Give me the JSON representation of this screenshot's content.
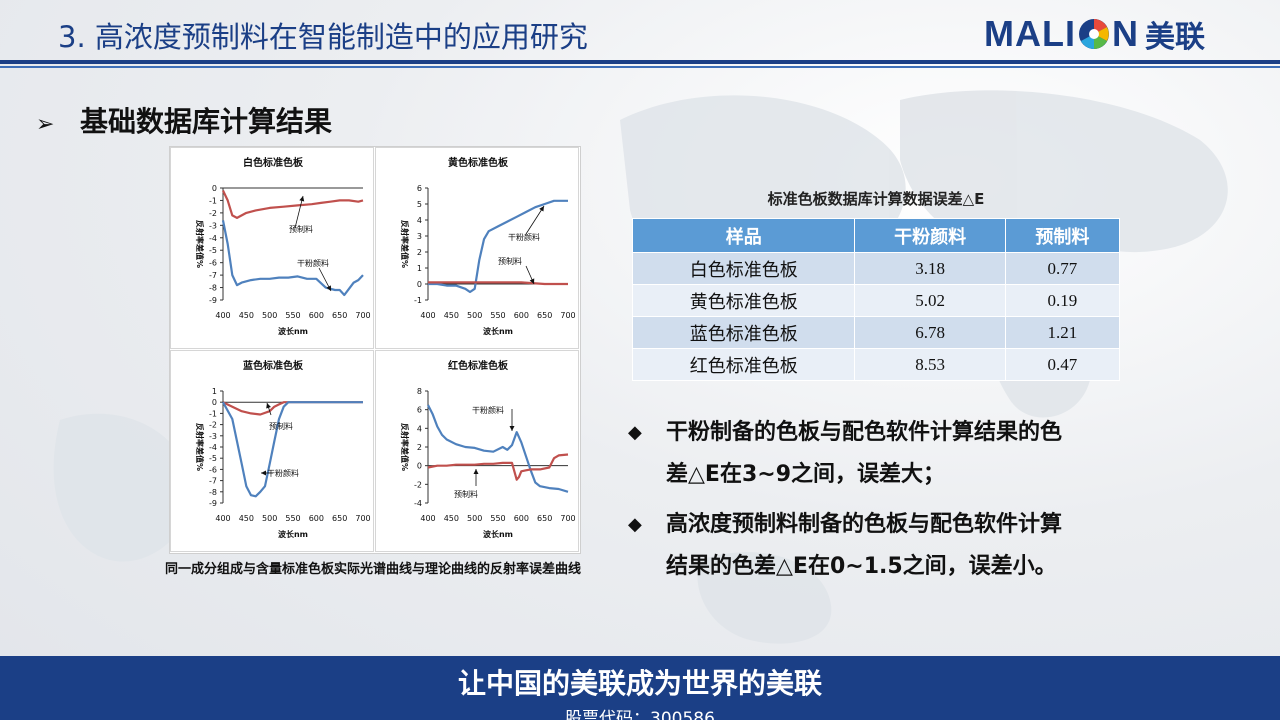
{
  "header": {
    "title": "3.  高浓度预制料在智能制造中的应用研究",
    "logo_text": "MALI N",
    "logo_cn": "美联"
  },
  "section": {
    "arrow": "➢",
    "title": "基础数据库计算结果"
  },
  "chart_data": [
    {
      "type": "line",
      "title": "白色标准色板",
      "xlabel": "波长nm",
      "ylabel": "反射率差值%",
      "xlim": [
        400,
        700
      ],
      "ylim": [
        -9,
        0
      ],
      "xticks": [
        "400",
        "450",
        "500",
        "550",
        "600",
        "650",
        "700"
      ],
      "yticks": [
        "0",
        "-1",
        "-2",
        "-3",
        "-4",
        "-5",
        "-6",
        "-7",
        "-8",
        "-9"
      ],
      "series": [
        {
          "name": "预制料",
          "color": "#c0504d",
          "x": [
            400,
            410,
            420,
            430,
            450,
            470,
            500,
            530,
            560,
            590,
            610,
            630,
            650,
            670,
            690,
            700
          ],
          "y": [
            -0.2,
            -1.0,
            -2.2,
            -2.4,
            -2.0,
            -1.8,
            -1.6,
            -1.5,
            -1.4,
            -1.3,
            -1.2,
            -1.1,
            -1.0,
            -1.0,
            -1.1,
            -1.0
          ]
        },
        {
          "name": "干粉颜料",
          "color": "#4f81bd",
          "x": [
            400,
            410,
            420,
            430,
            440,
            460,
            480,
            500,
            520,
            540,
            560,
            580,
            600,
            620,
            640,
            650,
            660,
            670,
            680,
            690,
            700
          ],
          "y": [
            -2.6,
            -4.5,
            -7.0,
            -7.8,
            -7.6,
            -7.4,
            -7.3,
            -7.3,
            -7.2,
            -7.2,
            -7.1,
            -7.3,
            -7.3,
            -8.0,
            -8.2,
            -8.2,
            -8.6,
            -8.1,
            -7.6,
            -7.4,
            -7.0
          ]
        }
      ],
      "annotations": [
        "预制料",
        "干粉颜料"
      ]
    },
    {
      "type": "line",
      "title": "黄色标准色板",
      "xlabel": "波长nm",
      "ylabel": "反射率差值%",
      "xlim": [
        400,
        700
      ],
      "ylim": [
        -1,
        6
      ],
      "xticks": [
        "400",
        "450",
        "500",
        "550",
        "600",
        "650",
        "700"
      ],
      "yticks": [
        "6",
        "5",
        "4",
        "3",
        "2",
        "1",
        "0",
        "-1"
      ],
      "series": [
        {
          "name": "干粉颜料",
          "color": "#4f81bd",
          "x": [
            400,
            420,
            440,
            460,
            480,
            490,
            500,
            505,
            510,
            520,
            530,
            550,
            570,
            590,
            610,
            630,
            650,
            670,
            690,
            700
          ],
          "y": [
            0.0,
            0.0,
            -0.1,
            -0.1,
            -0.3,
            -0.5,
            -0.3,
            0.6,
            1.5,
            2.8,
            3.3,
            3.6,
            3.9,
            4.2,
            4.5,
            4.8,
            5.0,
            5.2,
            5.2,
            5.2
          ]
        },
        {
          "name": "预制料",
          "color": "#c0504d",
          "x": [
            400,
            450,
            500,
            550,
            600,
            650,
            700
          ],
          "y": [
            0.1,
            0.1,
            0.1,
            0.1,
            0.1,
            0.0,
            0.0
          ]
        }
      ],
      "annotations": [
        "干粉颜料",
        "预制料"
      ]
    },
    {
      "type": "line",
      "title": "蓝色标准色板",
      "xlabel": "波长nm",
      "ylabel": "反射率差值%",
      "xlim": [
        400,
        700
      ],
      "ylim": [
        -9,
        1
      ],
      "xticks": [
        "400",
        "450",
        "500",
        "550",
        "600",
        "650",
        "700"
      ],
      "yticks": [
        "1",
        "0",
        "-1",
        "-2",
        "-3",
        "-4",
        "-5",
        "-6",
        "-7",
        "-8",
        "-9"
      ],
      "series": [
        {
          "name": "预制料",
          "color": "#c0504d",
          "x": [
            400,
            420,
            440,
            460,
            480,
            500,
            510,
            520,
            530,
            540,
            560,
            600,
            650,
            700
          ],
          "y": [
            0.0,
            -0.4,
            -0.8,
            -1.0,
            -1.1,
            -0.8,
            -0.4,
            -0.2,
            0.0,
            0.0,
            0.0,
            0.0,
            0.0,
            0.0
          ]
        },
        {
          "name": "干粉颜料",
          "color": "#4f81bd",
          "x": [
            400,
            420,
            430,
            440,
            450,
            460,
            470,
            480,
            490,
            500,
            510,
            520,
            530,
            540,
            560,
            600,
            650,
            700
          ],
          "y": [
            0.0,
            -1.5,
            -3.5,
            -5.5,
            -7.5,
            -8.3,
            -8.4,
            -8.0,
            -7.5,
            -5.5,
            -3.5,
            -1.5,
            -0.4,
            0.0,
            0.0,
            0.0,
            0.0,
            0.0
          ]
        }
      ],
      "annotations": [
        "预制料",
        "干粉颜料"
      ]
    },
    {
      "type": "line",
      "title": "红色标准色板",
      "xlabel": "波长nm",
      "ylabel": "反射率差值%",
      "xlim": [
        400,
        700
      ],
      "ylim": [
        -4,
        8
      ],
      "xticks": [
        "400",
        "450",
        "500",
        "550",
        "600",
        "650",
        "700"
      ],
      "yticks": [
        "8",
        "6",
        "4",
        "2",
        "0",
        "-2",
        "-4"
      ],
      "series": [
        {
          "name": "干粉颜料",
          "color": "#4f81bd",
          "x": [
            400,
            410,
            420,
            430,
            440,
            460,
            480,
            500,
            520,
            540,
            560,
            570,
            580,
            590,
            600,
            610,
            620,
            630,
            640,
            660,
            680,
            700
          ],
          "y": [
            6.5,
            5.5,
            4.2,
            3.3,
            2.8,
            2.3,
            2.0,
            1.9,
            1.6,
            1.5,
            2.0,
            1.7,
            2.2,
            3.6,
            2.5,
            1.0,
            -0.5,
            -1.8,
            -2.2,
            -2.4,
            -2.5,
            -2.8
          ]
        },
        {
          "name": "预制料",
          "color": "#c0504d",
          "x": [
            400,
            420,
            440,
            460,
            480,
            500,
            520,
            540,
            560,
            580,
            590,
            595,
            600,
            610,
            620,
            640,
            660,
            670,
            680,
            700
          ],
          "y": [
            -0.2,
            0.0,
            0.0,
            0.1,
            0.1,
            0.1,
            0.2,
            0.2,
            0.3,
            0.3,
            -1.5,
            -1.2,
            -0.6,
            -0.5,
            -0.4,
            -0.4,
            -0.2,
            0.8,
            1.1,
            1.2
          ]
        }
      ],
      "annotations": [
        "干粉颜料",
        "预制料"
      ]
    }
  ],
  "caption": "同一成分组成与含量标准色板实际光谱曲线与理论曲线的反射率误差曲线",
  "table": {
    "title": "标准色板数据库计算数据误差△E",
    "headers": [
      "样品",
      "干粉颜料",
      "预制料"
    ],
    "rows": [
      {
        "sample": "白色标准色板",
        "dry": "3.18",
        "pre": "0.77"
      },
      {
        "sample": "黄色标准色板",
        "dry": "5.02",
        "pre": "0.19"
      },
      {
        "sample": "蓝色标准色板",
        "dry": "6.78",
        "pre": "1.21"
      },
      {
        "sample": "红色标准色板",
        "dry": "8.53",
        "pre": "0.47"
      }
    ]
  },
  "bullets": {
    "marker": "◆",
    "items": [
      {
        "line1": "干粉制备的色板与配色软件计算结果的色",
        "line2": "差△E在3~9之间，误差大；"
      },
      {
        "line1": "高浓度预制料制备的色板与配色软件计算",
        "line2": "结果的色差△E在0~1.5之间，误差小。"
      }
    ]
  },
  "footer": {
    "slogan": "让中国的美联成为世界的美联",
    "stock": "股票代码：300586"
  },
  "colors": {
    "brand": "#1b3f86",
    "table_header": "#5b9bd5",
    "dry_series": "#4f81bd",
    "pre_series": "#c0504d"
  }
}
